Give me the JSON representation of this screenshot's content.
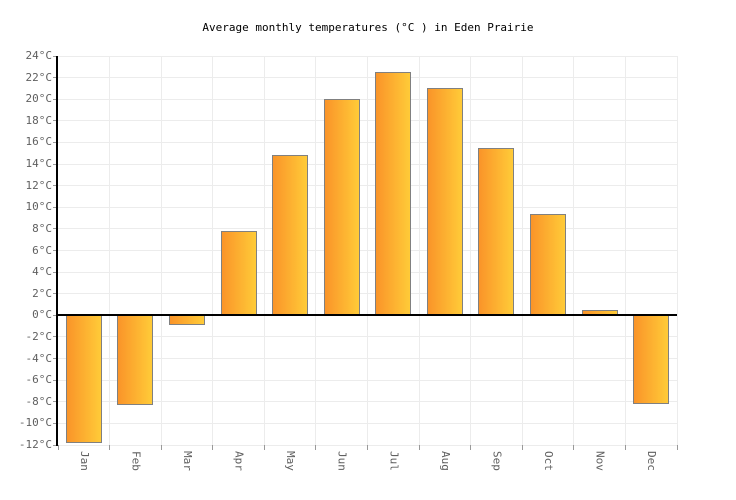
{
  "chart_data": {
    "type": "bar",
    "title": "Average monthly temperatures (°C ) in Eden Prairie",
    "categories": [
      "Jan",
      "Feb",
      "Mar",
      "Apr",
      "May",
      "Jun",
      "Jul",
      "Aug",
      "Sep",
      "Oct",
      "Nov",
      "Dec"
    ],
    "values": [
      -11.8,
      -8.3,
      -0.9,
      7.8,
      14.8,
      20.0,
      22.5,
      21.0,
      15.5,
      9.4,
      0.5,
      -8.2
    ],
    "xlabel": "",
    "ylabel": "",
    "ylim": [
      -12,
      24
    ],
    "ytick_step": 2,
    "ytick_suffix": "°C",
    "grid": true,
    "legend_position": "none"
  },
  "colors": {
    "background": "#ffffff",
    "bar_gradient_left": "#FA9429",
    "bar_gradient_right": "#FFCB38",
    "bar_border": "#808080",
    "gridline": "#ececec",
    "axis_line": "#000000",
    "zero_line": "#000000",
    "tick_mark": "#999999",
    "tick_label_color": "#606060",
    "title_color": "#000000"
  }
}
